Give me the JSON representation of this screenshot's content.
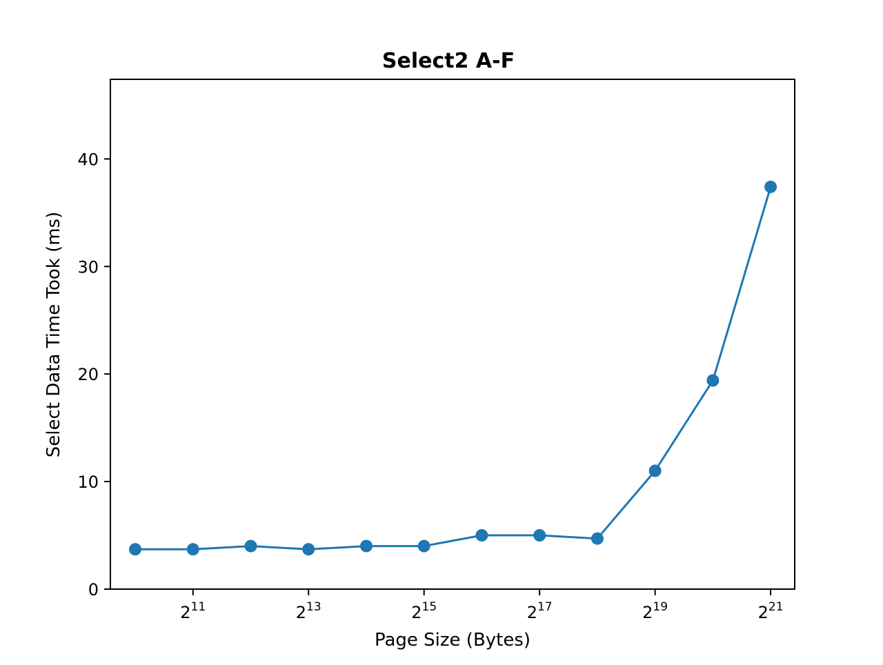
{
  "chart_data": {
    "type": "line",
    "title": "Select2 A-F",
    "xlabel": "Page Size (Bytes)",
    "ylabel": "Select Data Time Took (ms)",
    "x_scale": "log2",
    "x_tick_base": "2",
    "x_ticks": [
      {
        "exp": "11",
        "value": 2048
      },
      {
        "exp": "13",
        "value": 8192
      },
      {
        "exp": "15",
        "value": 32768
      },
      {
        "exp": "17",
        "value": 131072
      },
      {
        "exp": "19",
        "value": 524288
      },
      {
        "exp": "21",
        "value": 2097152
      }
    ],
    "y_ticks": [
      {
        "label": "0",
        "value": 0
      },
      {
        "label": "10",
        "value": 10
      },
      {
        "label": "20",
        "value": 20
      },
      {
        "label": "30",
        "value": 30
      },
      {
        "label": "40",
        "value": 40
      }
    ],
    "xlim": [
      760,
      2800000
    ],
    "ylim": [
      0,
      47.4
    ],
    "grid": false,
    "legend": "none",
    "series": [
      {
        "color": "#1f77b4",
        "marker": "circle",
        "x": [
          1024,
          2048,
          4096,
          8192,
          16384,
          32768,
          65536,
          131072,
          262144,
          524288,
          1048576,
          2097152
        ],
        "y": [
          3.7,
          3.7,
          4.0,
          3.7,
          4.0,
          4.0,
          5.0,
          5.0,
          4.7,
          11.0,
          19.4,
          37.4
        ]
      }
    ]
  }
}
